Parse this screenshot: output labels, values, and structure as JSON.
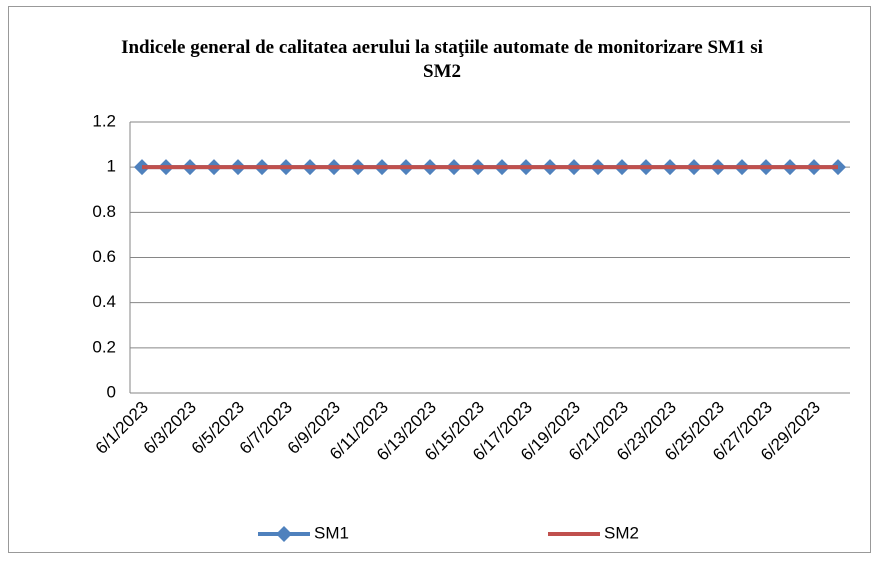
{
  "chart_data": {
    "type": "line",
    "title": "Indicele general de calitatea aerului la staţiile automate de monitorizare SM1 si SM2",
    "categories": [
      "6/1/2023",
      null,
      "6/3/2023",
      null,
      "6/5/2023",
      null,
      "6/7/2023",
      null,
      "6/9/2023",
      null,
      "6/11/2023",
      null,
      "6/13/2023",
      null,
      "6/15/2023",
      null,
      "6/17/2023",
      null,
      "6/19/2023",
      null,
      "6/21/2023",
      null,
      "6/23/2023",
      null,
      "6/25/2023",
      null,
      "6/27/2023",
      null,
      "6/29/2023",
      null
    ],
    "series": [
      {
        "name": "SM1",
        "color": "#4f81bd",
        "marker": "diamond",
        "values": [
          1,
          1,
          1,
          1,
          1,
          1,
          1,
          1,
          1,
          1,
          1,
          1,
          1,
          1,
          1,
          1,
          1,
          1,
          1,
          1,
          1,
          1,
          1,
          1,
          1,
          1,
          1,
          1,
          1,
          1
        ]
      },
      {
        "name": "SM2",
        "color": "#c0504d",
        "values": [
          1,
          1,
          1,
          1,
          1,
          1,
          1,
          1,
          1,
          1,
          1,
          1,
          1,
          1,
          1,
          1,
          1,
          1,
          1,
          1,
          1,
          1,
          1,
          1,
          1,
          1,
          1,
          1,
          1,
          1
        ]
      }
    ],
    "ylim": [
      0,
      1.2
    ],
    "yticks": [
      0,
      0.2,
      0.4,
      0.6,
      0.8,
      1,
      1.2
    ],
    "grid": true,
    "legend": "bottom"
  }
}
